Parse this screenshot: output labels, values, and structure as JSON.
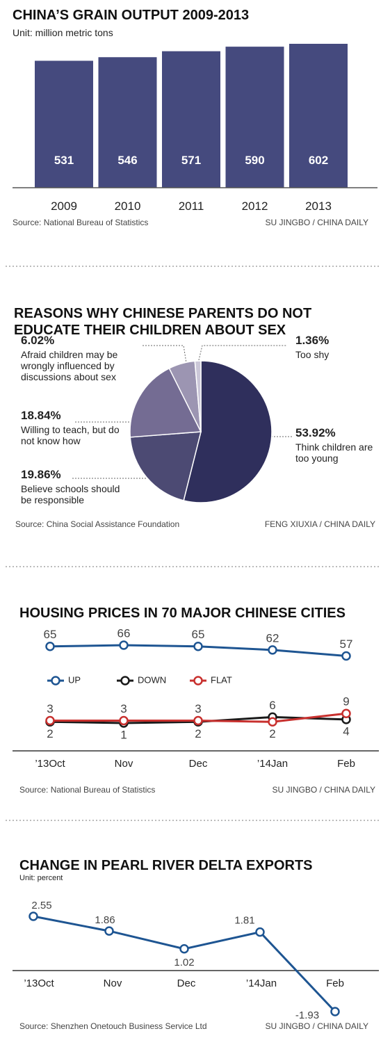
{
  "chart_data": [
    {
      "type": "bar",
      "title": "CHINA’S GRAIN OUTPUT 2009-2013",
      "subtitle": "Unit: million metric tons",
      "categories": [
        "2009",
        "2010",
        "2011",
        "2012",
        "2013"
      ],
      "values": [
        531,
        546,
        571,
        590,
        602
      ],
      "color": "#454a7e",
      "source": "Source: National Bureau of Statistics",
      "credit": "SU JINGBO / CHINA DAILY"
    },
    {
      "type": "pie",
      "title": [
        "REASONS WHY CHINESE PARENTS DO NOT",
        "EDUCATE  THEIR CHILDREN ABOUT SEX"
      ],
      "categories": [
        "Think children are too young",
        "Believe schools should be responsible",
        "Willing to teach, but do not know how",
        "Afraid children may be wrongly influenced by discussions about sex",
        "Too shy"
      ],
      "values": [
        53.92,
        19.86,
        18.84,
        6.02,
        1.36
      ],
      "value_labels": [
        "53.92%",
        "19.86%",
        "18.84%",
        "6.02%",
        "1.36%"
      ],
      "colors": [
        "#2f2f5c",
        "#4c4a73",
        "#746c93",
        "#9c95b2",
        "#cbc7d8"
      ],
      "source": "Source: China Social Assistance Foundation",
      "credit": "FENG XIUXIA / CHINA DAILY"
    },
    {
      "type": "line",
      "title": "HOUSING PRICES IN 70 MAJOR CHINESE CITIES",
      "categories": [
        "’13Oct",
        "Nov",
        "Dec",
        "’14Jan",
        "Feb"
      ],
      "series": [
        {
          "name": "UP",
          "color": "#1e5592",
          "values": [
            65,
            66,
            65,
            62,
            57
          ]
        },
        {
          "name": "DOWN",
          "color": "#1a1a1a",
          "values": [
            2,
            1,
            2,
            6,
            4
          ]
        },
        {
          "name": "FLAT",
          "color": "#c8302e",
          "values": [
            3,
            3,
            3,
            2,
            9
          ]
        }
      ],
      "legend": "middle-left",
      "source": "Source: National Bureau of Statistics",
      "credit": "SU JINGBO / CHINA DAILY"
    },
    {
      "type": "line",
      "title": "CHANGE IN PEARL RIVER DELTA EXPORTS",
      "subtitle": "Unit: percent",
      "categories": [
        "’13Oct",
        "Nov",
        "Dec",
        "’14Jan",
        "Feb"
      ],
      "series": [
        {
          "color": "#1e5592",
          "values": [
            2.55,
            1.86,
            1.02,
            1.81,
            -1.93
          ]
        }
      ],
      "source": "Source: Shenzhen Onetouch Business Service Ltd",
      "credit": "SU JINGBO / CHINA DAILY"
    }
  ]
}
